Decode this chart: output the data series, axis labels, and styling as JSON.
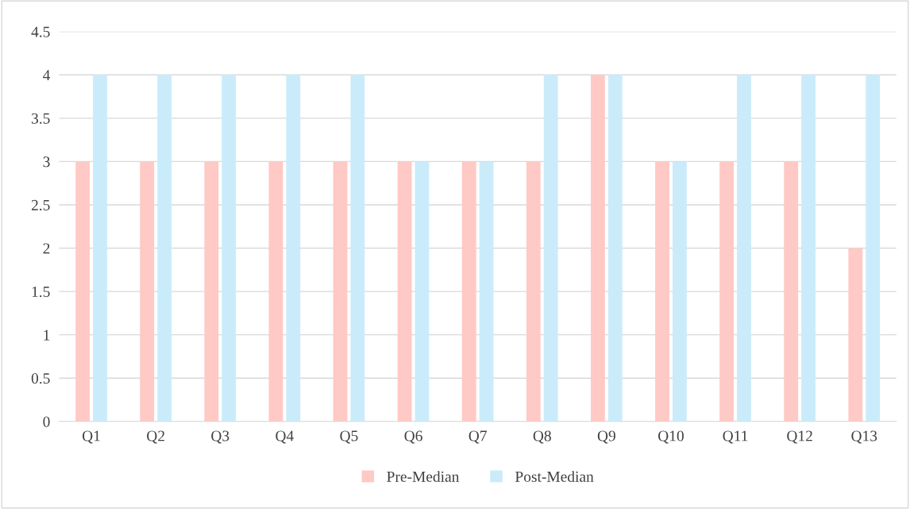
{
  "chart_data": {
    "type": "bar",
    "categories": [
      "Q1",
      "Q2",
      "Q3",
      "Q4",
      "Q5",
      "Q6",
      "Q7",
      "Q8",
      "Q9",
      "Q10",
      "Q11",
      "Q12",
      "Q13"
    ],
    "series": [
      {
        "name": "Pre-Median",
        "color": "#ffc9c5",
        "values": [
          3,
          3,
          3,
          3,
          3,
          3,
          3,
          3,
          4,
          3,
          3,
          3,
          2
        ]
      },
      {
        "name": "Post-Median",
        "color": "#caecfa",
        "values": [
          4,
          4,
          4,
          4,
          4,
          3,
          3,
          4,
          4,
          3,
          4,
          4,
          4
        ]
      }
    ],
    "ylim": [
      0,
      4.5
    ],
    "yticks": [
      0,
      0.5,
      1,
      1.5,
      2,
      2.5,
      3,
      3.5,
      4,
      4.5
    ],
    "grid": "y",
    "legend": "bottom"
  }
}
